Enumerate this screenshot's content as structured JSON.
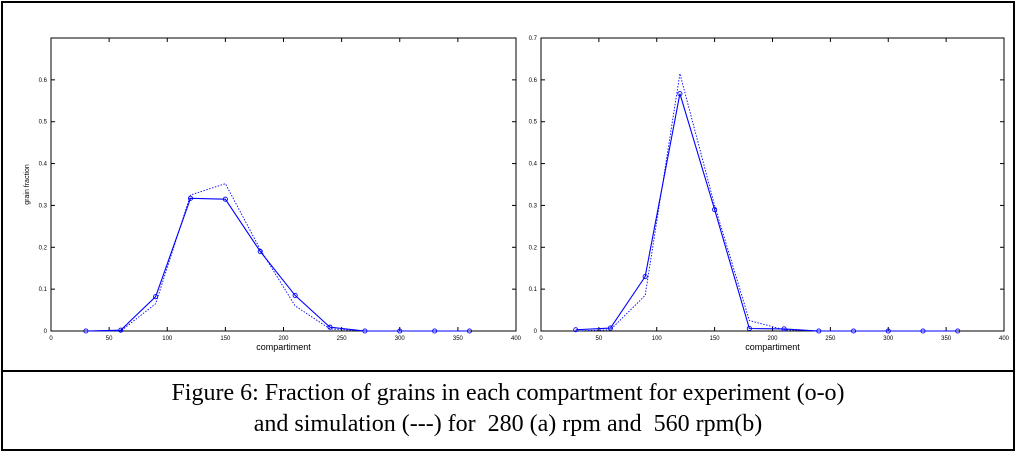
{
  "chart_data": [
    {
      "type": "line",
      "panel": "a",
      "xlabel": "compartiment",
      "ylabel": "grain fraction",
      "xlim": [
        0,
        400
      ],
      "ylim": [
        0,
        0.7
      ],
      "xticks": [
        0,
        50,
        100,
        150,
        200,
        250,
        300,
        350,
        400
      ],
      "yticks": [
        0,
        0.1,
        0.2,
        0.3,
        0.4,
        0.5,
        0.6
      ],
      "grid": false,
      "series": [
        {
          "style": "solid-circle",
          "color": "#0000ff",
          "x": [
            30,
            60,
            90,
            120,
            150,
            180,
            210,
            240,
            270,
            300,
            330,
            360
          ],
          "y": [
            0,
            0.002,
            0.082,
            0.317,
            0.315,
            0.19,
            0.085,
            0.009,
            0,
            0,
            0,
            0
          ]
        },
        {
          "style": "dotted",
          "color": "#0000ff",
          "x": [
            30,
            60,
            90,
            120,
            150,
            180,
            210,
            240,
            270,
            300,
            330,
            360
          ],
          "y": [
            0,
            0,
            0.065,
            0.325,
            0.352,
            0.195,
            0.06,
            0.005,
            0,
            0,
            0,
            0
          ]
        }
      ]
    },
    {
      "type": "line",
      "panel": "b",
      "xlabel": "compartiment",
      "ylabel": "",
      "xlim": [
        0,
        400
      ],
      "ylim": [
        0,
        0.7
      ],
      "xticks": [
        0,
        50,
        100,
        150,
        200,
        250,
        300,
        350,
        400
      ],
      "yticks": [
        0,
        0.1,
        0.2,
        0.3,
        0.4,
        0.5,
        0.6,
        0.7
      ],
      "grid": false,
      "series": [
        {
          "style": "solid-circle",
          "color": "#0000ff",
          "x": [
            30,
            60,
            90,
            120,
            150,
            180,
            210,
            240,
            270,
            300,
            330,
            360
          ],
          "y": [
            0.003,
            0.007,
            0.13,
            0.567,
            0.29,
            0.006,
            0.005,
            0,
            0,
            0,
            0,
            0
          ]
        },
        {
          "style": "dotted",
          "color": "#0000ff",
          "x": [
            30,
            60,
            90,
            120,
            150,
            180,
            210,
            240,
            270,
            300,
            330,
            360
          ],
          "y": [
            0,
            0.003,
            0.085,
            0.615,
            0.3,
            0.025,
            0.003,
            0,
            0,
            0,
            0,
            0
          ]
        }
      ]
    }
  ],
  "caption": {
    "line1": "Figure 6: Fraction of grains in each compartment for experiment (o-o)",
    "line2": "and simulation (---) for  280 (a) rpm and  560 rpm(b)"
  }
}
